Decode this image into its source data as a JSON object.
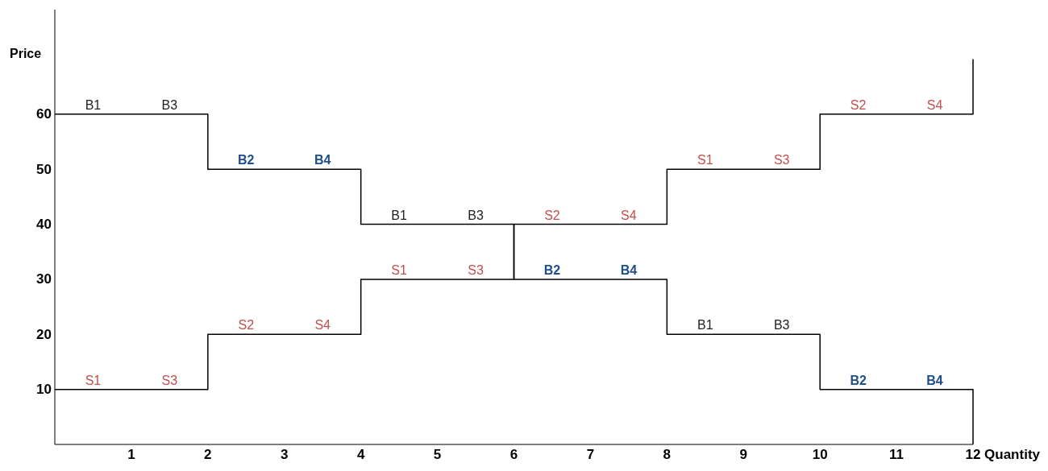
{
  "chart_data": {
    "type": "step",
    "xlabel": "Quantity",
    "ylabel": "Price",
    "xlim": [
      0,
      12
    ],
    "ylim": [
      0,
      79
    ],
    "xticks": [
      1,
      2,
      3,
      4,
      5,
      6,
      7,
      8,
      9,
      10,
      11,
      12
    ],
    "yticks": [
      10,
      20,
      30,
      40,
      50,
      60
    ],
    "grid": false,
    "marker": "none",
    "line_style": "solid",
    "series": [
      {
        "color": "#000000",
        "x": [
          0,
          0.5,
          1.5,
          2,
          2.5,
          3.5,
          4,
          4.5,
          5.5,
          6,
          6.5,
          7.5,
          8,
          8.5,
          9.5,
          10,
          10.5,
          11.5,
          12
        ],
        "values": [
          60,
          60,
          60,
          50,
          50,
          50,
          40,
          40,
          40,
          30,
          30,
          30,
          20,
          20,
          20,
          10,
          10,
          10,
          0
        ],
        "value_labels": [
          null,
          "B1",
          "B3",
          null,
          "B2",
          "B4",
          null,
          "B1",
          "B3",
          null,
          "B2",
          "B4",
          null,
          "B1",
          "B3",
          null,
          "B2",
          "B4",
          null
        ],
        "colors": [
          null,
          "#222222",
          "#222222",
          null,
          "#1f4e8c",
          "#1f4e8c",
          null,
          "#222222",
          "#222222",
          null,
          "#1f4e8c",
          "#1f4e8c",
          null,
          "#222222",
          "#222222",
          null,
          "#1f4e8c",
          "#1f4e8c",
          null
        ]
      },
      {
        "color": "#000000",
        "x": [
          0,
          0.5,
          1.5,
          2,
          2.5,
          3.5,
          4,
          4.5,
          5.5,
          6,
          6.5,
          7.5,
          8,
          8.5,
          9.5,
          10,
          10.5,
          11.5,
          12
        ],
        "values": [
          10,
          10,
          10,
          20,
          20,
          20,
          30,
          30,
          30,
          40,
          40,
          40,
          50,
          50,
          50,
          60,
          60,
          60,
          70
        ],
        "value_labels": [
          null,
          "S1",
          "S3",
          null,
          "S2",
          "S4",
          null,
          "S1",
          "S3",
          null,
          "S2",
          "S4",
          null,
          "S1",
          "S3",
          null,
          "S2",
          "S4",
          null
        ],
        "colors": [
          null,
          "#c0504d",
          "#c0504d",
          null,
          "#c0504d",
          "#c0504d",
          null,
          "#c0504d",
          "#c0504d",
          null,
          "#c0504d",
          "#c0504d",
          null,
          "#c0504d",
          "#c0504d",
          null,
          "#c0504d",
          "#c0504d",
          null
        ]
      }
    ]
  }
}
